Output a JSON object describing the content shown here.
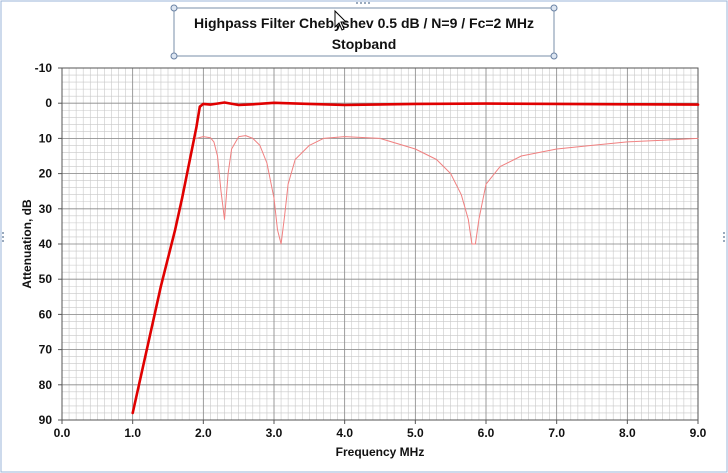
{
  "chart_data": {
    "type": "line",
    "title": "Highpass Filter Chebyshev  0.5 dB / N=9 / Fc=2 MHz",
    "subtitle": "Stopband",
    "xlabel": "Frequency MHz",
    "ylabel": "Attenuation, dB",
    "xlim": [
      0,
      9
    ],
    "ylim": [
      -10,
      90
    ],
    "y_inverted": true,
    "x_ticks": [
      "0.0",
      "1.0",
      "2.0",
      "3.0",
      "4.0",
      "5.0",
      "6.0",
      "7.0",
      "8.0",
      "9.0"
    ],
    "y_ticks": [
      "-10",
      "0",
      "10",
      "20",
      "30",
      "40",
      "50",
      "60",
      "70",
      "80",
      "90"
    ],
    "grid": true,
    "series": [
      {
        "color": "#e00000",
        "x": [
          1.0,
          1.2,
          1.4,
          1.6,
          1.7,
          1.8,
          1.9,
          1.95,
          2.0,
          2.1,
          2.3,
          2.5,
          2.7,
          3.0,
          3.5,
          4.0,
          5.0,
          6.0,
          7.0,
          8.0,
          9.0
        ],
        "y": [
          88,
          70,
          52,
          36,
          27,
          17,
          7,
          1,
          0.2,
          0.4,
          -0.2,
          0.5,
          0.3,
          -0.1,
          0.2,
          0.5,
          0.2,
          0.1,
          0.2,
          0.3,
          0.4
        ]
      },
      {
        "color": "#f08080",
        "x": [
          1.9,
          2.0,
          2.1,
          2.15,
          2.2,
          2.25,
          2.3,
          2.35,
          2.4,
          2.5,
          2.6,
          2.7,
          2.8,
          2.9,
          3.0,
          3.05,
          3.1,
          3.15,
          3.2,
          3.3,
          3.5,
          3.7,
          4.0,
          4.5,
          5.0,
          5.3,
          5.5,
          5.65,
          5.75,
          5.8,
          5.85,
          5.9,
          6.0,
          6.2,
          6.5,
          7.0,
          7.5,
          8.0,
          8.5,
          9.0
        ],
        "y": [
          10,
          9.5,
          9.8,
          11,
          15,
          25,
          33,
          20,
          13,
          9.5,
          9.2,
          10,
          12,
          17,
          27,
          36,
          40,
          32,
          23,
          16,
          12,
          10,
          9.5,
          10,
          13,
          16,
          20,
          26,
          33,
          40,
          40,
          33,
          23,
          18,
          15,
          13,
          12,
          11,
          10.5,
          10
        ]
      }
    ]
  }
}
